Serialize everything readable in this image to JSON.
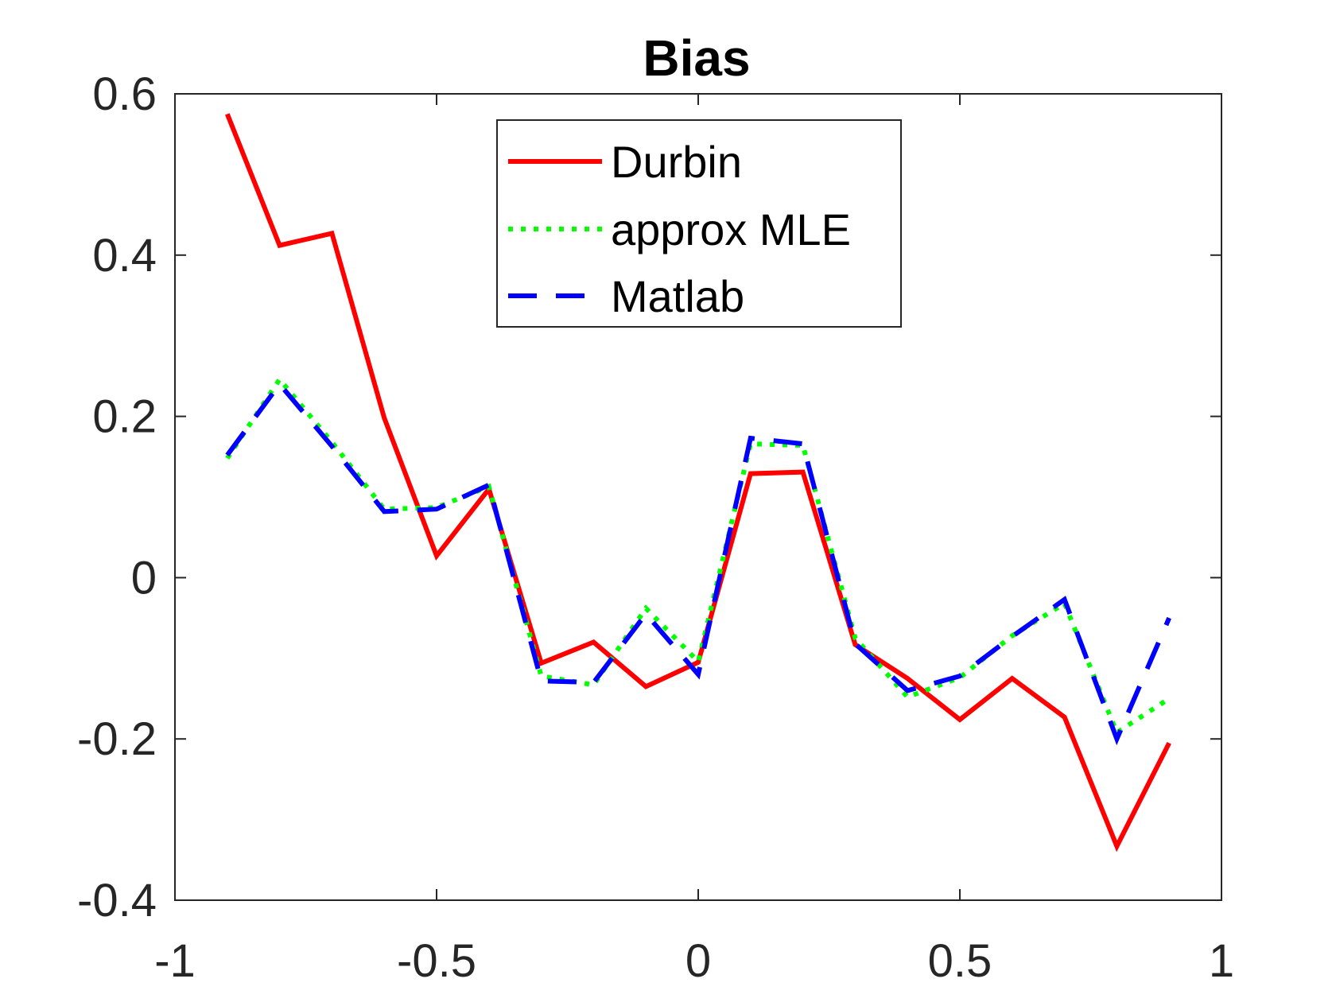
{
  "chart_data": {
    "type": "line",
    "title": "Bias",
    "xlabel": "",
    "ylabel": "",
    "xlim": [
      -1,
      1
    ],
    "ylim": [
      -0.4,
      0.6
    ],
    "xticks": [
      -1,
      -0.5,
      0,
      0.5,
      1
    ],
    "xtick_labels": [
      "-1",
      "-0.5",
      "0",
      "0.5",
      "1"
    ],
    "yticks": [
      -0.4,
      -0.2,
      0,
      0.2,
      0.4,
      0.6
    ],
    "ytick_labels": [
      "-0.4",
      "-0.2",
      "0",
      "0.2",
      "0.4",
      "0.6"
    ],
    "grid": false,
    "legend_position": "top-center",
    "x": [
      -0.9,
      -0.8,
      -0.7,
      -0.6,
      -0.5,
      -0.4,
      -0.3,
      -0.2,
      -0.1,
      0,
      0.1,
      0.2,
      0.3,
      0.4,
      0.5,
      0.6,
      0.7,
      0.8,
      0.9
    ],
    "series": [
      {
        "name": "Durbin",
        "color": "#ff0000",
        "style": "solid",
        "values": [
          0.575,
          0.412,
          0.427,
          0.198,
          0.027,
          0.11,
          -0.106,
          -0.08,
          -0.135,
          -0.105,
          0.129,
          0.131,
          -0.083,
          -0.125,
          -0.176,
          -0.125,
          -0.173,
          -0.333,
          -0.205
        ]
      },
      {
        "name": "approx MLE",
        "color": "#00ff00",
        "style": "dotted",
        "values": [
          0.148,
          0.246,
          0.168,
          0.085,
          0.087,
          0.113,
          -0.122,
          -0.133,
          -0.038,
          -0.104,
          0.166,
          0.164,
          -0.075,
          -0.148,
          -0.124,
          -0.072,
          -0.032,
          -0.192,
          -0.15
        ]
      },
      {
        "name": "Matlab",
        "color": "#0000ff",
        "style": "dashed",
        "values": [
          0.152,
          0.24,
          0.163,
          0.082,
          0.085,
          0.115,
          -0.128,
          -0.13,
          -0.045,
          -0.12,
          0.173,
          0.166,
          -0.082,
          -0.14,
          -0.122,
          -0.073,
          -0.027,
          -0.2,
          -0.05
        ]
      }
    ]
  }
}
